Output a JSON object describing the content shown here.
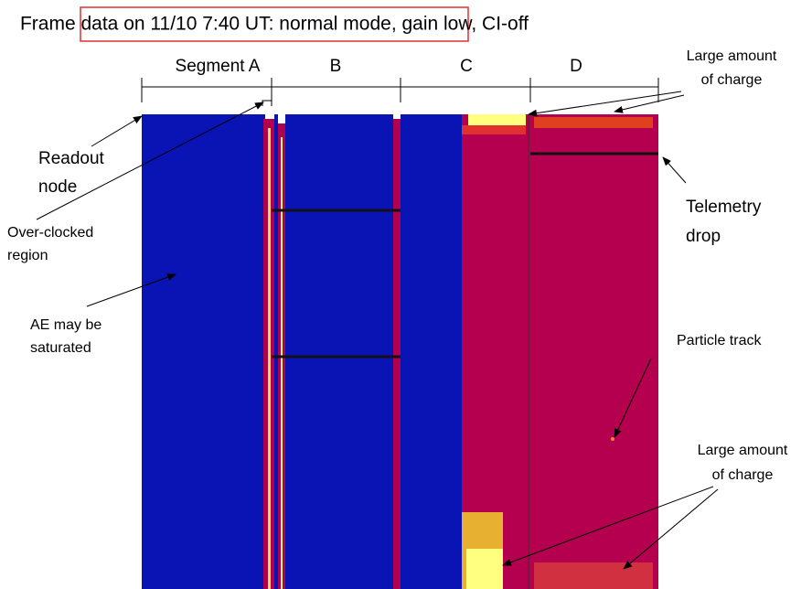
{
  "title": "Frame data on 11/10 7:40 UT: normal mode, gain low, CI-off",
  "segments": [
    "Segment A",
    "B",
    "C",
    "D"
  ],
  "annotations": {
    "top_charge": [
      "Large amount",
      "of charge"
    ],
    "readout_node": [
      "Readout",
      "node"
    ],
    "over_clocked": [
      "Over-clocked",
      "region"
    ],
    "ae_saturated": [
      "AE may be",
      "saturated"
    ],
    "telemetry_drop": [
      "Telemetry",
      "drop"
    ],
    "particle_track": [
      "Particle track"
    ],
    "bottom_charge": [
      "Large amount",
      "of charge"
    ]
  }
}
